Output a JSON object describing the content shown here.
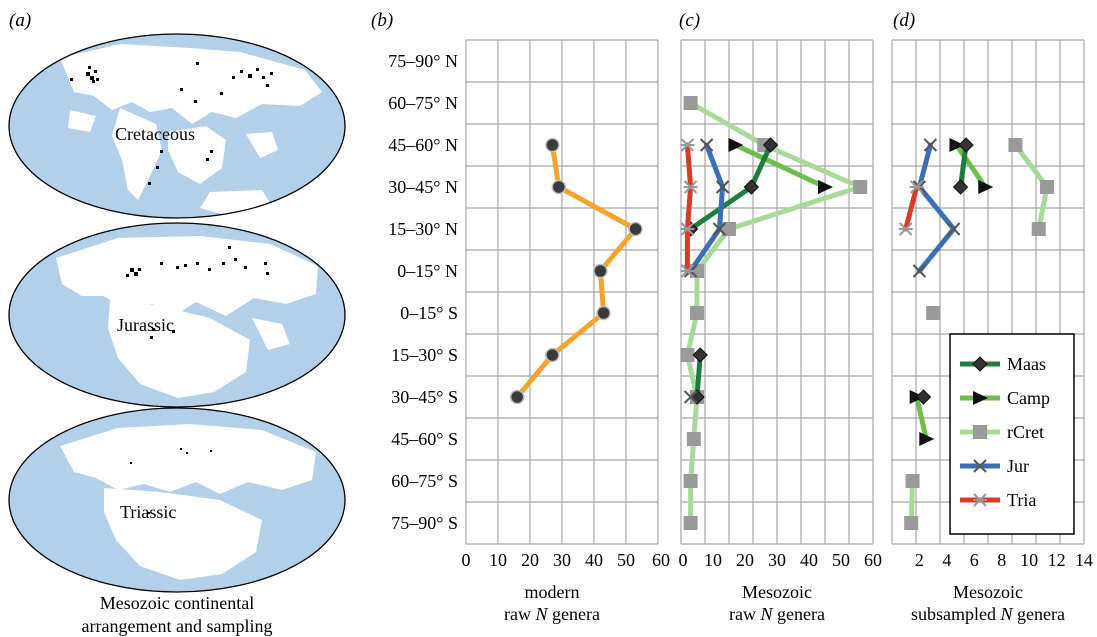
{
  "panel_labels": {
    "a": "(a)",
    "b": "(b)",
    "c": "(c)",
    "d": "(d)"
  },
  "maps": {
    "labels": [
      "Cretaceous",
      "Jurassic",
      "Triassic"
    ],
    "caption_line1": "Mesozoic continental",
    "caption_line2": "arrangement and sampling",
    "colors": {
      "ocean": "#b3d0ea",
      "land": "#ffffff",
      "dots": "#000000"
    }
  },
  "chart_data": [
    {
      "id": "b",
      "type": "line",
      "orientation": "horizontal",
      "categories": [
        "75–90° N",
        "60–75° N",
        "45–60° N",
        "30–45° N",
        "15–30° N",
        "0–15° N",
        "0–15° S",
        "15–30° S",
        "30–45° S",
        "45–60° S",
        "60–75° S",
        "75–90° S"
      ],
      "xlabel_line1": "modern",
      "xlabel_line2_pre": "raw ",
      "xlabel_line2_italic": "N",
      "xlabel_line2_post": " genera",
      "xlim": [
        0,
        60
      ],
      "xticks": [
        "0",
        "10",
        "20",
        "30",
        "40",
        "50",
        "60"
      ],
      "grid": true,
      "series": [
        {
          "name": "modern",
          "color": "#f7a32e",
          "marker": "circle",
          "values": [
            null,
            null,
            27,
            29,
            53,
            42,
            43,
            27,
            16,
            null,
            null,
            null
          ]
        }
      ]
    },
    {
      "id": "c",
      "type": "line",
      "orientation": "horizontal",
      "categories": [
        "75–90° N",
        "60–75° N",
        "45–60° N",
        "30–45° N",
        "15–30° N",
        "0–15° N",
        "0–15° S",
        "15–30° S",
        "30–45° S",
        "45–60° S",
        "60–75° S",
        "75–90° S"
      ],
      "xlabel_line1": "Mesozoic",
      "xlabel_line2_pre": "raw ",
      "xlabel_line2_italic": "N",
      "xlabel_line2_post": " genera",
      "xlim": [
        0,
        60
      ],
      "xticks": [
        "0",
        "10",
        "20",
        "30",
        "40",
        "50",
        "60"
      ],
      "grid": true,
      "series": [
        {
          "name": "rCret",
          "color": "#a8d89a",
          "marker": "square",
          "values": [
            null,
            3,
            26,
            56,
            15,
            5,
            5,
            2,
            5,
            4,
            3,
            3
          ]
        },
        {
          "name": "Camp",
          "color": "#6cbf4b",
          "marker": "triangle",
          "values": [
            null,
            null,
            17,
            45,
            null,
            null,
            null,
            null,
            null,
            null,
            null,
            null
          ]
        },
        {
          "name": "Maas",
          "color": "#1e7d3a",
          "marker": "diamond",
          "values": [
            null,
            null,
            28,
            22,
            3,
            null,
            null,
            6,
            5,
            null,
            null,
            null
          ]
        },
        {
          "name": "Jur",
          "color": "#3a6fb8",
          "marker": "x",
          "values": [
            null,
            null,
            8,
            13,
            12,
            3,
            null,
            null,
            3,
            null,
            null,
            null
          ]
        },
        {
          "name": "Tria",
          "color": "#d93b2b",
          "marker": "star",
          "values": [
            null,
            null,
            2,
            3,
            2,
            2,
            null,
            null,
            null,
            null,
            null,
            null
          ]
        }
      ]
    },
    {
      "id": "d",
      "type": "line",
      "orientation": "horizontal",
      "categories": [
        "75–90° N",
        "60–75° N",
        "45–60° N",
        "30–45° N",
        "15–30° N",
        "0–15° N",
        "0–15° S",
        "15–30° S",
        "30–45° S",
        "45–60° S",
        "60–75° S",
        "75–90° S"
      ],
      "xlabel_line1": "Mesozoic",
      "xlabel_line2_pre": "subsampled ",
      "xlabel_line2_italic": "N",
      "xlabel_line2_post": " genera",
      "xlim": [
        0,
        14
      ],
      "xticks": [
        "2",
        "4",
        "6",
        "8",
        "10",
        "12",
        "14"
      ],
      "grid": true,
      "legend": {
        "placement": "bottom-right",
        "entries": [
          "Maas",
          "Camp",
          "rCret",
          "Jur",
          "Tria"
        ]
      },
      "series": [
        {
          "name": "rCret",
          "color": "#a8d89a",
          "marker": "square",
          "values": [
            null,
            null,
            9,
            11.3,
            10.7,
            null,
            3,
            null,
            null,
            null,
            1.5,
            1.4
          ]
        },
        {
          "name": "Camp",
          "color": "#6cbf4b",
          "marker": "triangle",
          "values": [
            null,
            null,
            4.7,
            6.8,
            null,
            null,
            null,
            null,
            1.8,
            2.5,
            null,
            null
          ]
        },
        {
          "name": "Maas",
          "color": "#1e7d3a",
          "marker": "diamond",
          "values": [
            null,
            null,
            5.4,
            5,
            null,
            null,
            null,
            null,
            2.3,
            null,
            null,
            null
          ]
        },
        {
          "name": "Jur",
          "color": "#3a6fb8",
          "marker": "x",
          "values": [
            null,
            null,
            2.8,
            2,
            4.5,
            2,
            null,
            null,
            null,
            null,
            null,
            null
          ]
        },
        {
          "name": "Tria",
          "color": "#d93b2b",
          "marker": "star",
          "values": [
            null,
            null,
            null,
            1.8,
            1,
            null,
            null,
            null,
            null,
            null,
            null,
            null
          ]
        }
      ]
    }
  ]
}
